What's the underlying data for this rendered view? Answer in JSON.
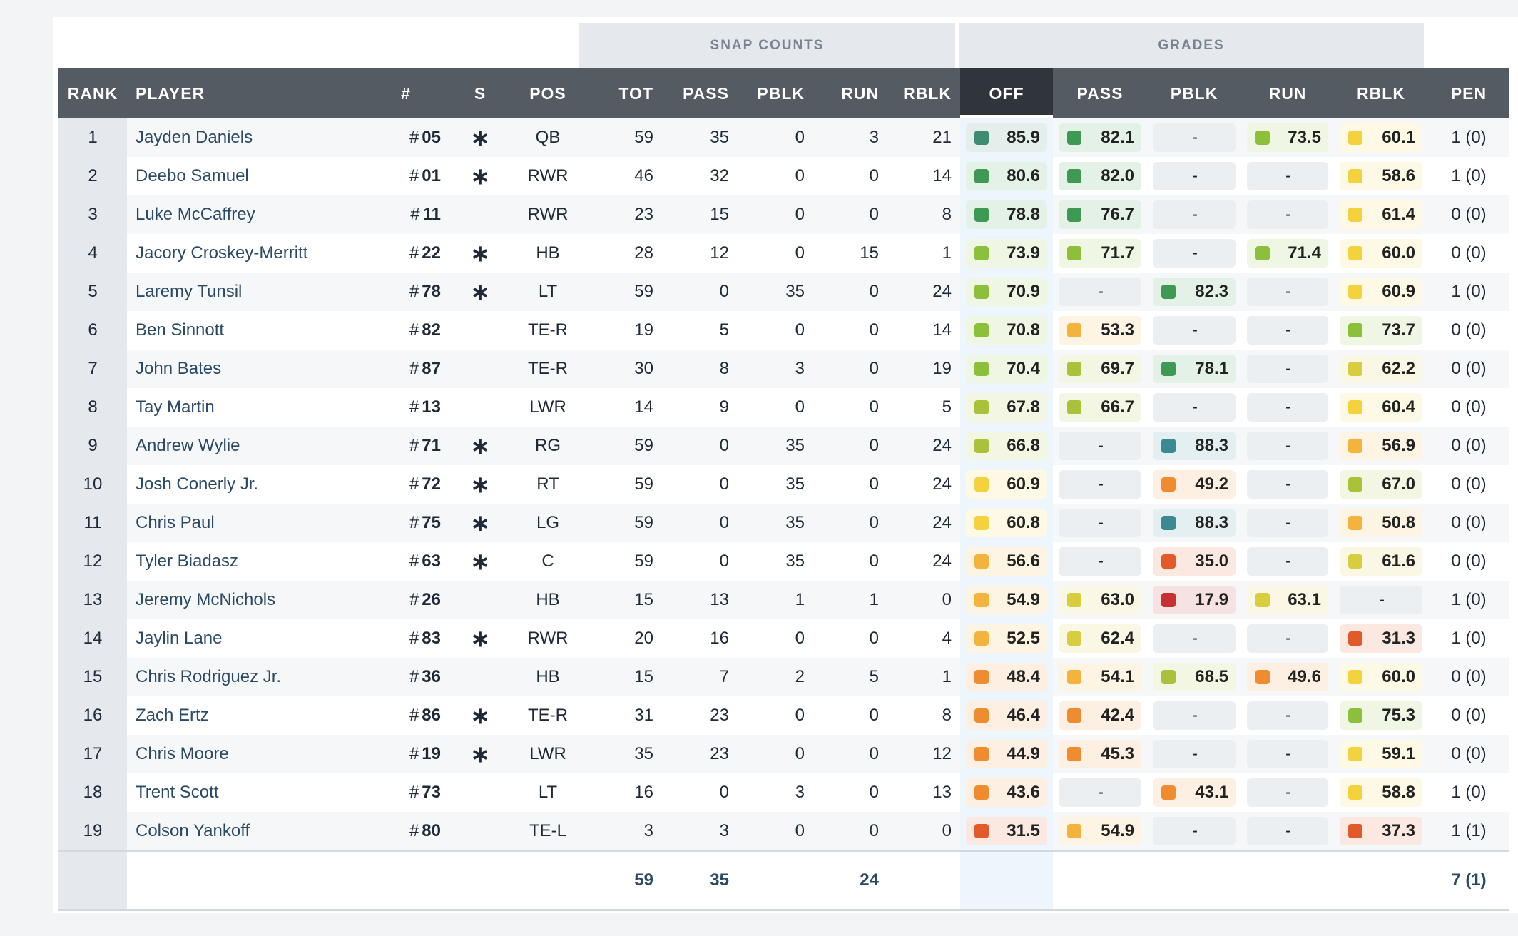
{
  "groups": {
    "snap_counts": "SNAP COUNTS",
    "grades": "GRADES"
  },
  "columns": {
    "rank": "RANK",
    "player": "PLAYER",
    "num": "#",
    "s": "S",
    "pos": "POS",
    "tot": "TOT",
    "pass": "PASS",
    "pblk": "PBLK",
    "run": "RUN",
    "rblk": "RBLK",
    "off": "OFF",
    "g_pass": "PASS",
    "g_pblk": "PBLK",
    "g_run": "RUN",
    "g_rblk": "RBLK",
    "pen": "PEN"
  },
  "colors": {
    "header_bg": "#555b63",
    "header_selected_bg": "#30353b",
    "elite": "#3f8c73",
    "high": "#3e9a52",
    "good": "#8cbf3a",
    "above_avg": "#a9c23a",
    "avg": "#d8cd3e",
    "mid": "#f4d23d",
    "below_avg": "#f3b33d",
    "low": "#ef8c2f",
    "poor": "#e35a2a",
    "very_poor": "#c62f33",
    "teal": "#3a8a93"
  },
  "rows": [
    {
      "rank": "1",
      "player": "Jayden Daniels",
      "num": "05",
      "starter": true,
      "pos": "QB",
      "tot": "59",
      "pass": "35",
      "pblk": "0",
      "run": "3",
      "rblk": "21",
      "off": "85.9",
      "g_pass": "82.1",
      "g_pblk": "-",
      "g_run": "73.5",
      "g_rblk": "60.1",
      "pen": "1 (0)"
    },
    {
      "rank": "2",
      "player": "Deebo Samuel",
      "num": "01",
      "starter": true,
      "pos": "RWR",
      "tot": "46",
      "pass": "32",
      "pblk": "0",
      "run": "0",
      "rblk": "14",
      "off": "80.6",
      "g_pass": "82.0",
      "g_pblk": "-",
      "g_run": "-",
      "g_rblk": "58.6",
      "pen": "1 (0)"
    },
    {
      "rank": "3",
      "player": "Luke McCaffrey",
      "num": "11",
      "starter": false,
      "pos": "RWR",
      "tot": "23",
      "pass": "15",
      "pblk": "0",
      "run": "0",
      "rblk": "8",
      "off": "78.8",
      "g_pass": "76.7",
      "g_pblk": "-",
      "g_run": "-",
      "g_rblk": "61.4",
      "pen": "0 (0)"
    },
    {
      "rank": "4",
      "player": "Jacory Croskey-Merritt",
      "num": "22",
      "starter": true,
      "pos": "HB",
      "tot": "28",
      "pass": "12",
      "pblk": "0",
      "run": "15",
      "rblk": "1",
      "off": "73.9",
      "g_pass": "71.7",
      "g_pblk": "-",
      "g_run": "71.4",
      "g_rblk": "60.0",
      "pen": "0 (0)"
    },
    {
      "rank": "5",
      "player": "Laremy Tunsil",
      "num": "78",
      "starter": true,
      "pos": "LT",
      "tot": "59",
      "pass": "0",
      "pblk": "35",
      "run": "0",
      "rblk": "24",
      "off": "70.9",
      "g_pass": "-",
      "g_pblk": "82.3",
      "g_run": "-",
      "g_rblk": "60.9",
      "pen": "1 (0)"
    },
    {
      "rank": "6",
      "player": "Ben Sinnott",
      "num": "82",
      "starter": false,
      "pos": "TE-R",
      "tot": "19",
      "pass": "5",
      "pblk": "0",
      "run": "0",
      "rblk": "14",
      "off": "70.8",
      "g_pass": "53.3",
      "g_pblk": "-",
      "g_run": "-",
      "g_rblk": "73.7",
      "pen": "0 (0)"
    },
    {
      "rank": "7",
      "player": "John Bates",
      "num": "87",
      "starter": false,
      "pos": "TE-R",
      "tot": "30",
      "pass": "8",
      "pblk": "3",
      "run": "0",
      "rblk": "19",
      "off": "70.4",
      "g_pass": "69.7",
      "g_pblk": "78.1",
      "g_run": "-",
      "g_rblk": "62.2",
      "pen": "0 (0)"
    },
    {
      "rank": "8",
      "player": "Tay Martin",
      "num": "13",
      "starter": false,
      "pos": "LWR",
      "tot": "14",
      "pass": "9",
      "pblk": "0",
      "run": "0",
      "rblk": "5",
      "off": "67.8",
      "g_pass": "66.7",
      "g_pblk": "-",
      "g_run": "-",
      "g_rblk": "60.4",
      "pen": "0 (0)"
    },
    {
      "rank": "9",
      "player": "Andrew Wylie",
      "num": "71",
      "starter": true,
      "pos": "RG",
      "tot": "59",
      "pass": "0",
      "pblk": "35",
      "run": "0",
      "rblk": "24",
      "off": "66.8",
      "g_pass": "-",
      "g_pblk": "88.3",
      "g_run": "-",
      "g_rblk": "56.9",
      "pen": "0 (0)"
    },
    {
      "rank": "10",
      "player": "Josh Conerly Jr.",
      "num": "72",
      "starter": true,
      "pos": "RT",
      "tot": "59",
      "pass": "0",
      "pblk": "35",
      "run": "0",
      "rblk": "24",
      "off": "60.9",
      "g_pass": "-",
      "g_pblk": "49.2",
      "g_run": "-",
      "g_rblk": "67.0",
      "pen": "0 (0)"
    },
    {
      "rank": "11",
      "player": "Chris Paul",
      "num": "75",
      "starter": true,
      "pos": "LG",
      "tot": "59",
      "pass": "0",
      "pblk": "35",
      "run": "0",
      "rblk": "24",
      "off": "60.8",
      "g_pass": "-",
      "g_pblk": "88.3",
      "g_run": "-",
      "g_rblk": "50.8",
      "pen": "0 (0)"
    },
    {
      "rank": "12",
      "player": "Tyler Biadasz",
      "num": "63",
      "starter": true,
      "pos": "C",
      "tot": "59",
      "pass": "0",
      "pblk": "35",
      "run": "0",
      "rblk": "24",
      "off": "56.6",
      "g_pass": "-",
      "g_pblk": "35.0",
      "g_run": "-",
      "g_rblk": "61.6",
      "pen": "0 (0)"
    },
    {
      "rank": "13",
      "player": "Jeremy McNichols",
      "num": "26",
      "starter": false,
      "pos": "HB",
      "tot": "15",
      "pass": "13",
      "pblk": "1",
      "run": "1",
      "rblk": "0",
      "off": "54.9",
      "g_pass": "63.0",
      "g_pblk": "17.9",
      "g_run": "63.1",
      "g_rblk": "-",
      "pen": "1 (0)"
    },
    {
      "rank": "14",
      "player": "Jaylin Lane",
      "num": "83",
      "starter": true,
      "pos": "RWR",
      "tot": "20",
      "pass": "16",
      "pblk": "0",
      "run": "0",
      "rblk": "4",
      "off": "52.5",
      "g_pass": "62.4",
      "g_pblk": "-",
      "g_run": "-",
      "g_rblk": "31.3",
      "pen": "1 (0)"
    },
    {
      "rank": "15",
      "player": "Chris Rodriguez Jr.",
      "num": "36",
      "starter": false,
      "pos": "HB",
      "tot": "15",
      "pass": "7",
      "pblk": "2",
      "run": "5",
      "rblk": "1",
      "off": "48.4",
      "g_pass": "54.1",
      "g_pblk": "68.5",
      "g_run": "49.6",
      "g_rblk": "60.0",
      "pen": "0 (0)"
    },
    {
      "rank": "16",
      "player": "Zach Ertz",
      "num": "86",
      "starter": true,
      "pos": "TE-R",
      "tot": "31",
      "pass": "23",
      "pblk": "0",
      "run": "0",
      "rblk": "8",
      "off": "46.4",
      "g_pass": "42.4",
      "g_pblk": "-",
      "g_run": "-",
      "g_rblk": "75.3",
      "pen": "0 (0)"
    },
    {
      "rank": "17",
      "player": "Chris Moore",
      "num": "19",
      "starter": true,
      "pos": "LWR",
      "tot": "35",
      "pass": "23",
      "pblk": "0",
      "run": "0",
      "rblk": "12",
      "off": "44.9",
      "g_pass": "45.3",
      "g_pblk": "-",
      "g_run": "-",
      "g_rblk": "59.1",
      "pen": "0 (0)"
    },
    {
      "rank": "18",
      "player": "Trent Scott",
      "num": "73",
      "starter": false,
      "pos": "LT",
      "tot": "16",
      "pass": "0",
      "pblk": "3",
      "run": "0",
      "rblk": "13",
      "off": "43.6",
      "g_pass": "-",
      "g_pblk": "43.1",
      "g_run": "-",
      "g_rblk": "58.8",
      "pen": "1 (0)"
    },
    {
      "rank": "19",
      "player": "Colson Yankoff",
      "num": "80",
      "starter": false,
      "pos": "TE-L",
      "tot": "3",
      "pass": "3",
      "pblk": "0",
      "run": "0",
      "rblk": "0",
      "off": "31.5",
      "g_pass": "54.9",
      "g_pblk": "-",
      "g_run": "-",
      "g_rblk": "37.3",
      "pen": "1 (1)"
    }
  ],
  "totals": {
    "tot": "59",
    "pass": "35",
    "run": "24",
    "pen": "7 (1)"
  }
}
